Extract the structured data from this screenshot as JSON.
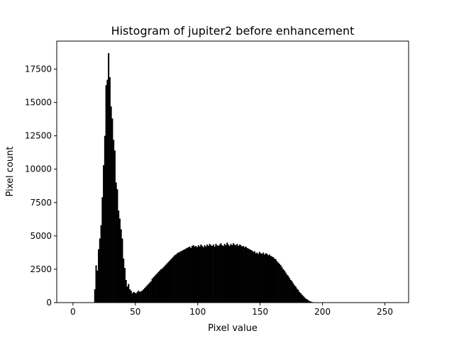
{
  "chart_data": {
    "type": "bar",
    "title": "Histogram of jupiter2 before enhancement",
    "xlabel": "Pixel value",
    "ylabel": "Pixel count",
    "xlim": [
      -13,
      269
    ],
    "ylim": [
      0,
      19600
    ],
    "x_ticks": [
      0,
      50,
      100,
      150,
      200,
      250
    ],
    "y_ticks": [
      0,
      2500,
      5000,
      7500,
      10000,
      12500,
      15000,
      17500
    ],
    "grid": false,
    "bar_color": "#000000",
    "bin_start": 17,
    "bin_width": 1,
    "values": [
      1000,
      2800,
      2400,
      4000,
      4800,
      5800,
      7900,
      10300,
      12500,
      16300,
      16700,
      18700,
      16900,
      14700,
      13800,
      12200,
      11400,
      9000,
      8500,
      6900,
      6300,
      5500,
      4800,
      3300,
      2600,
      1700,
      1200,
      1400,
      1000,
      900,
      700,
      800,
      750,
      700,
      800,
      900,
      800,
      850,
      900,
      1000,
      1100,
      1200,
      1300,
      1400,
      1500,
      1600,
      1800,
      1900,
      2000,
      2100,
      2200,
      2300,
      2400,
      2500,
      2550,
      2650,
      2750,
      2850,
      2950,
      3050,
      3150,
      3250,
      3350,
      3450,
      3550,
      3600,
      3700,
      3750,
      3800,
      3850,
      3900,
      3950,
      4000,
      4050,
      4100,
      4150,
      4200,
      4100,
      4250,
      4300,
      4200,
      4250,
      4150,
      4300,
      4200,
      4350,
      4250,
      4150,
      4300,
      4200,
      4350,
      4250,
      4400,
      4300,
      4250,
      4350,
      4200,
      4400,
      4300,
      4250,
      4350,
      4450,
      4300,
      4250,
      4400,
      4300,
      4500,
      4350,
      4250,
      4400,
      4300,
      4450,
      4350,
      4300,
      4400,
      4250,
      4350,
      4300,
      4200,
      4250,
      4150,
      4200,
      4100,
      4050,
      4000,
      3950,
      3900,
      3800,
      3850,
      3700,
      3750,
      3650,
      3800,
      3700,
      3650,
      3750,
      3600,
      3700,
      3650,
      3550,
      3600,
      3500,
      3450,
      3400,
      3300,
      3250,
      3100,
      3000,
      2900,
      2800,
      2650,
      2500,
      2400,
      2250,
      2100,
      2000,
      1850,
      1700,
      1600,
      1450,
      1300,
      1200,
      1050,
      950,
      800,
      700,
      600,
      500,
      400,
      300,
      250,
      180,
      120,
      80,
      50,
      30,
      20,
      10,
      5
    ]
  }
}
